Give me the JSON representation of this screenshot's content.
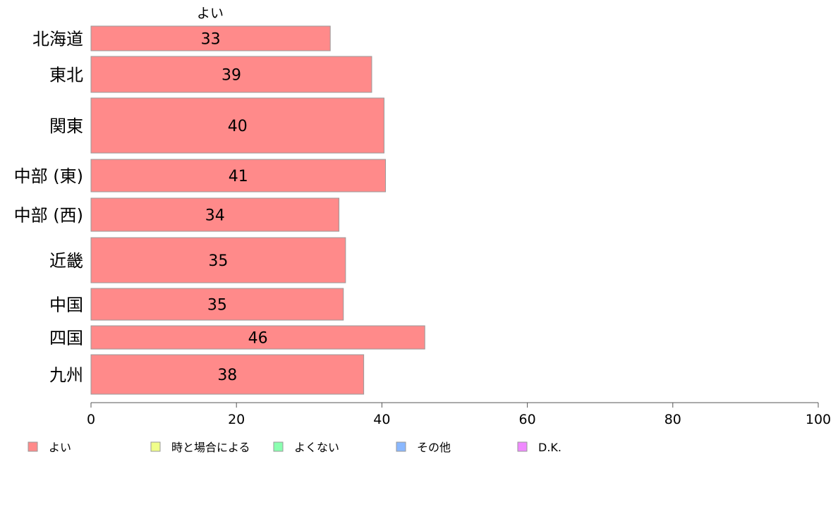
{
  "chart_data": {
    "type": "bar",
    "orientation": "horizontal",
    "column_label": "よい",
    "categories": [
      "北海道",
      "東北",
      "関東",
      "中部 (東)",
      "中部 (西)",
      "近畿",
      "中国",
      "四国",
      "九州"
    ],
    "series": [
      {
        "name": "よい",
        "color": "#ff8a8a",
        "values": [
          32.9,
          38.6,
          40.3,
          40.5,
          34.1,
          35.0,
          34.7,
          45.9,
          37.5
        ],
        "labels": [
          "33",
          "39",
          "40",
          "41",
          "34",
          "35",
          "35",
          "46",
          "38"
        ]
      }
    ],
    "xlim": [
      0,
      100
    ],
    "x_ticks": [
      0,
      20,
      40,
      60,
      80,
      100
    ],
    "grid": false,
    "legend": {
      "position": "bottom",
      "entries": [
        {
          "label": "よい",
          "color": "#ff8a8a"
        },
        {
          "label": "時と場合による",
          "color": "#f0ff8a"
        },
        {
          "label": "よくない",
          "color": "#8affb0"
        },
        {
          "label": "その他",
          "color": "#8ab8ff"
        },
        {
          "label": "D.K.",
          "color": "#f08aff"
        }
      ]
    }
  }
}
